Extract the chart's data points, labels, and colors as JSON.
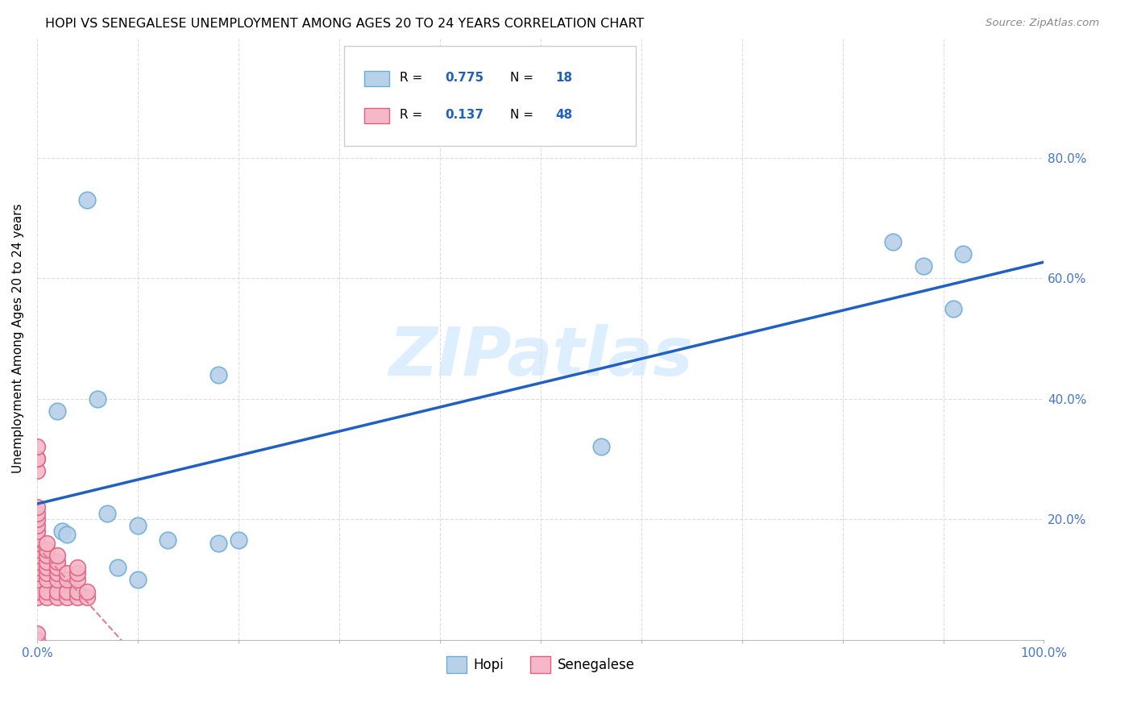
{
  "title": "HOPI VS SENEGALESE UNEMPLOYMENT AMONG AGES 20 TO 24 YEARS CORRELATION CHART",
  "source": "Source: ZipAtlas.com",
  "ylabel": "Unemployment Among Ages 20 to 24 years",
  "xlim": [
    0,
    1.0
  ],
  "ylim": [
    0,
    1.0
  ],
  "xticks": [
    0.0,
    0.1,
    0.2,
    0.3,
    0.4,
    0.5,
    0.6,
    0.7,
    0.8,
    0.9,
    1.0
  ],
  "yticks": [
    0.0,
    0.2,
    0.4,
    0.6,
    0.8
  ],
  "xtick_labels_show": [
    "0.0%",
    "",
    "",
    "",
    "",
    "",
    "",
    "",
    "",
    "",
    "100.0%"
  ],
  "ytick_labels_right": [
    "",
    "20.0%",
    "40.0%",
    "60.0%",
    "80.0%"
  ],
  "hopi_x": [
    0.02,
    0.06,
    0.18,
    0.18,
    0.85,
    0.88,
    0.92,
    0.91,
    0.56,
    0.08,
    0.025,
    0.03,
    0.13,
    0.2,
    0.05,
    0.07,
    0.1,
    0.1
  ],
  "hopi_y": [
    0.38,
    0.4,
    0.44,
    0.16,
    0.66,
    0.62,
    0.64,
    0.55,
    0.32,
    0.12,
    0.18,
    0.175,
    0.165,
    0.165,
    0.73,
    0.21,
    0.1,
    0.19
  ],
  "senegalese_x": [
    0.0,
    0.0,
    0.0,
    0.0,
    0.0,
    0.0,
    0.0,
    0.0,
    0.0,
    0.0,
    0.0,
    0.0,
    0.0,
    0.0,
    0.0,
    0.01,
    0.01,
    0.01,
    0.01,
    0.01,
    0.01,
    0.01,
    0.01,
    0.01,
    0.02,
    0.02,
    0.02,
    0.02,
    0.02,
    0.02,
    0.02,
    0.03,
    0.03,
    0.03,
    0.03,
    0.04,
    0.04,
    0.04,
    0.04,
    0.04,
    0.05,
    0.05,
    0.0,
    0.0,
    0.0,
    0.0,
    0.0,
    0.0
  ],
  "senegalese_y": [
    0.07,
    0.08,
    0.1,
    0.11,
    0.12,
    0.13,
    0.14,
    0.15,
    0.16,
    0.17,
    0.18,
    0.19,
    0.2,
    0.21,
    0.22,
    0.07,
    0.08,
    0.1,
    0.11,
    0.12,
    0.13,
    0.14,
    0.15,
    0.16,
    0.07,
    0.08,
    0.1,
    0.11,
    0.12,
    0.13,
    0.14,
    0.07,
    0.08,
    0.1,
    0.11,
    0.07,
    0.08,
    0.1,
    0.11,
    0.12,
    0.07,
    0.08,
    0.28,
    0.3,
    0.3,
    0.32,
    0.0,
    0.01
  ],
  "hopi_color": "#b8d0e8",
  "hopi_edge_color": "#6baed6",
  "senegalese_color": "#f4b8c8",
  "senegalese_edge_color": "#e06080",
  "hopi_R": 0.775,
  "hopi_N": 18,
  "senegalese_R": 0.137,
  "senegalese_N": 48,
  "hopi_line_color": "#2060c0",
  "senegalese_line_color": "#e08090",
  "watermark": "ZIPatlas",
  "watermark_color": "#ddeeff",
  "background_color": "#ffffff",
  "grid_color": "#dddddd",
  "tick_color": "#4477cc"
}
